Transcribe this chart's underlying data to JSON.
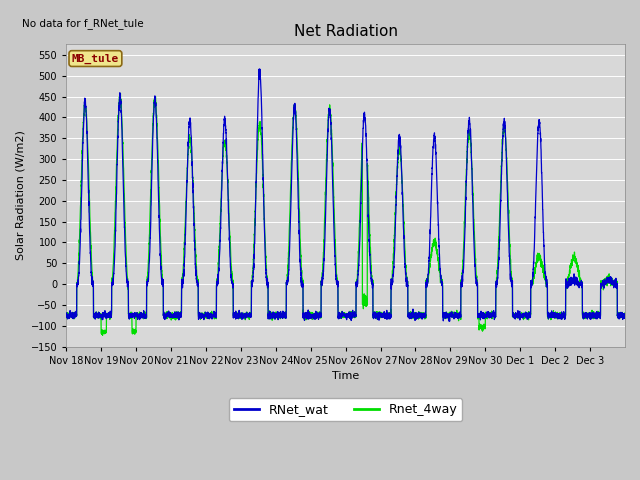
{
  "title": "Net Radiation",
  "xlabel": "Time",
  "ylabel": "Solar Radiation (W/m2)",
  "note": "No data for f_RNet_tule",
  "legend_label": "MB_tule",
  "series1_label": "RNet_wat",
  "series2_label": "Rnet_4way",
  "series1_color": "#0000cc",
  "series2_color": "#00dd00",
  "ylim": [
    -150,
    575
  ],
  "fig_bg": "#c8c8c8",
  "plot_bg": "#d8d8d8",
  "tick_labels": [
    "Nov 18",
    "Nov 19",
    "Nov 20",
    "Nov 21",
    "Nov 22",
    "Nov 23",
    "Nov 24",
    "Nov 25",
    "Nov 26",
    "Nov 27",
    "Nov 28",
    "Nov 29",
    "Nov 30",
    "Dec 1",
    "Dec 2",
    "Dec 3"
  ],
  "peaks_blue": [
    435,
    448,
    443,
    392,
    393,
    510,
    425,
    420,
    406,
    355,
    355,
    395,
    390,
    390,
    10,
    10
  ],
  "peaks_green": [
    430,
    448,
    443,
    348,
    343,
    385,
    427,
    420,
    405,
    322,
    100,
    365,
    375,
    65,
    65,
    10
  ],
  "night_base": -75,
  "night_dip_day1_green": -115,
  "linewidth": 0.9
}
